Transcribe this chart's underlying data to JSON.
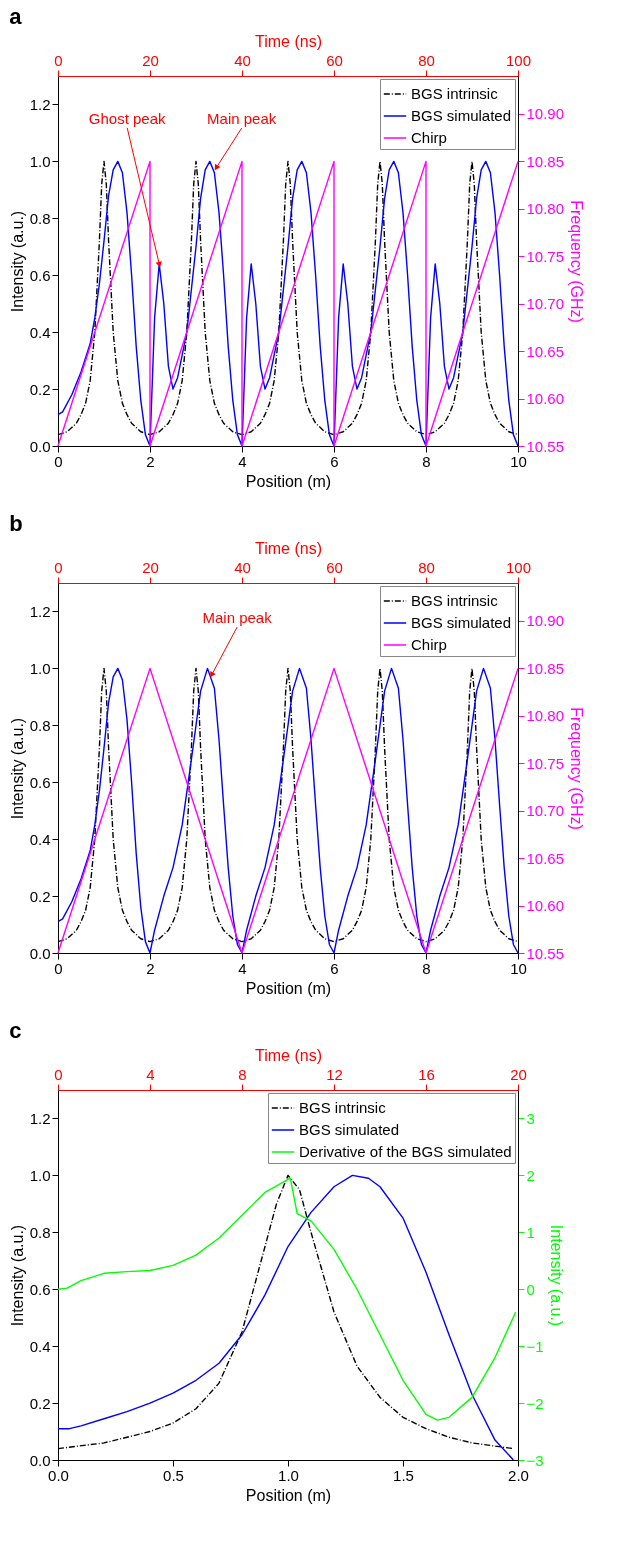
{
  "chart_data": [
    {
      "type": "line",
      "title": "a",
      "xlabel": "Position (m)",
      "ylabel": "Intensity (a.u.)",
      "y2label": "Frequency (GHz)",
      "x2label": "Time (ns)",
      "xlim": [
        0,
        10
      ],
      "xticks": [
        0,
        2,
        4,
        6,
        8,
        10
      ],
      "x2lim": [
        0,
        100
      ],
      "x2ticks": [
        0,
        20,
        40,
        60,
        80,
        100
      ],
      "ylim": [
        0,
        1.3
      ],
      "yticks": [
        {
          "value": 0,
          "label": "0.0"
        },
        {
          "value": 0.2,
          "label": "0.2"
        },
        {
          "value": 0.4,
          "label": "0.4"
        },
        {
          "value": 0.6,
          "label": "0.6"
        },
        {
          "value": 0.8,
          "label": "0.8"
        },
        {
          "value": 1,
          "label": "1.0"
        },
        {
          "value": 1.2,
          "label": "1.2"
        }
      ],
      "y2lim": [
        10.55,
        10.94
      ],
      "y2ticks": [
        {
          "value": 10.55,
          "label": "10.55"
        },
        {
          "value": 10.6,
          "label": "10.60"
        },
        {
          "value": 10.65,
          "label": "10.65"
        },
        {
          "value": 10.7,
          "label": "10.70"
        },
        {
          "value": 10.75,
          "label": "10.75"
        },
        {
          "value": 10.8,
          "label": "10.80"
        },
        {
          "value": 10.85,
          "label": "10.85"
        },
        {
          "value": 10.9,
          "label": "10.90"
        }
      ],
      "grid": false,
      "legend": "top right",
      "annotations": [
        {
          "text": "Ghost peak",
          "x": 2.2,
          "y": 0.64
        },
        {
          "text": "Main peak",
          "x": 3.45,
          "y": 0.98
        }
      ],
      "series": [
        {
          "name": "BGS intrinsic",
          "color": "#000000",
          "line_style": "dashdot",
          "x": [
            0,
            0.2,
            0.4,
            0.5,
            0.6,
            0.7,
            0.8,
            0.9,
            0.95,
            1,
            1.05,
            1.1,
            1.2,
            1.3,
            1.4,
            1.5,
            1.6,
            1.8,
            2,
            2.2,
            2.4,
            2.5,
            2.6,
            2.7,
            2.8,
            2.9,
            2.95,
            3,
            3.05,
            3.1,
            3.2,
            3.3,
            3.4,
            3.5,
            3.6,
            3.8,
            4,
            4.2,
            4.4,
            4.5,
            4.6,
            4.7,
            4.8,
            4.9,
            4.95,
            5,
            5.05,
            5.1,
            5.2,
            5.3,
            5.4,
            5.5,
            5.6,
            5.8,
            6,
            6.2,
            6.4,
            6.5,
            6.6,
            6.7,
            6.8,
            6.9,
            6.95,
            7,
            7.05,
            7.1,
            7.2,
            7.3,
            7.4,
            7.5,
            7.6,
            7.8,
            8,
            8.2,
            8.4,
            8.5,
            8.6,
            8.7,
            8.8,
            8.9,
            8.95,
            9,
            9.05,
            9.1,
            9.2,
            9.3,
            9.4,
            9.5,
            9.6,
            9.8,
            10
          ],
          "values": [
            0.04,
            0.05,
            0.08,
            0.11,
            0.15,
            0.23,
            0.4,
            0.72,
            0.92,
            1,
            0.92,
            0.72,
            0.4,
            0.23,
            0.15,
            0.11,
            0.08,
            0.05,
            0.04,
            0.05,
            0.08,
            0.11,
            0.15,
            0.23,
            0.4,
            0.72,
            0.92,
            1,
            0.92,
            0.72,
            0.4,
            0.23,
            0.15,
            0.11,
            0.08,
            0.05,
            0.04,
            0.05,
            0.08,
            0.11,
            0.15,
            0.23,
            0.4,
            0.72,
            0.92,
            1,
            0.92,
            0.72,
            0.4,
            0.23,
            0.15,
            0.11,
            0.08,
            0.05,
            0.04,
            0.05,
            0.08,
            0.11,
            0.15,
            0.23,
            0.4,
            0.72,
            0.92,
            1,
            0.92,
            0.72,
            0.4,
            0.23,
            0.15,
            0.11,
            0.08,
            0.05,
            0.04,
            0.05,
            0.08,
            0.11,
            0.15,
            0.23,
            0.4,
            0.72,
            0.92,
            1,
            0.92,
            0.72,
            0.4,
            0.23,
            0.15,
            0.11,
            0.08,
            0.05,
            0.04
          ]
        },
        {
          "name": "BGS simulated",
          "color": "#0000ff",
          "line_style": "solid",
          "x": [
            0,
            0.1,
            0.3,
            0.5,
            0.7,
            0.8,
            0.9,
            1,
            1.1,
            1.2,
            1.3,
            1.4,
            1.5,
            1.6,
            1.7,
            1.8,
            1.9,
            2,
            2.1,
            2.2,
            2.3,
            2.4,
            2.5,
            2.6,
            2.8,
            3,
            3.1,
            3.2,
            3.3,
            3.4,
            3.5,
            3.6,
            3.7,
            3.8,
            3.9,
            4,
            4.1,
            4.2,
            4.3,
            4.4,
            4.5,
            4.6,
            4.8,
            5,
            5.1,
            5.2,
            5.3,
            5.4,
            5.5,
            5.6,
            5.7,
            5.8,
            5.9,
            6,
            6.1,
            6.2,
            6.3,
            6.4,
            6.5,
            6.6,
            6.8,
            7,
            7.1,
            7.2,
            7.3,
            7.4,
            7.5,
            7.6,
            7.7,
            7.8,
            7.9,
            8,
            8.1,
            8.2,
            8.3,
            8.4,
            8.5,
            8.6,
            8.8,
            9,
            9.1,
            9.2,
            9.3,
            9.4,
            9.5,
            9.6,
            9.7,
            9.8,
            9.9,
            10
          ],
          "values": [
            0.11,
            0.12,
            0.18,
            0.26,
            0.36,
            0.45,
            0.57,
            0.72,
            0.88,
            0.97,
            1,
            0.96,
            0.82,
            0.6,
            0.35,
            0.16,
            0.04,
            0,
            0.45,
            0.64,
            0.5,
            0.28,
            0.2,
            0.24,
            0.4,
            0.7,
            0.87,
            0.97,
            1,
            0.96,
            0.82,
            0.6,
            0.35,
            0.16,
            0.04,
            0,
            0.45,
            0.64,
            0.5,
            0.28,
            0.2,
            0.24,
            0.4,
            0.7,
            0.87,
            0.97,
            1,
            0.96,
            0.82,
            0.6,
            0.35,
            0.16,
            0.04,
            0,
            0.45,
            0.64,
            0.5,
            0.28,
            0.2,
            0.24,
            0.4,
            0.7,
            0.87,
            0.97,
            1,
            0.96,
            0.82,
            0.6,
            0.35,
            0.16,
            0.04,
            0,
            0.45,
            0.64,
            0.5,
            0.28,
            0.2,
            0.24,
            0.4,
            0.7,
            0.87,
            0.97,
            1,
            0.96,
            0.82,
            0.6,
            0.35,
            0.16,
            0.04,
            0
          ]
        },
        {
          "name": "Chirp",
          "color": "#ff00ff",
          "line_style": "solid",
          "axis": "y2",
          "x": [
            0,
            2,
            2,
            4,
            4,
            6,
            6,
            8,
            8,
            10
          ],
          "values": [
            10.55,
            10.85,
            10.55,
            10.85,
            10.55,
            10.85,
            10.55,
            10.85,
            10.55,
            10.85
          ]
        }
      ]
    },
    {
      "type": "line",
      "title": "b",
      "xlabel": "Position (m)",
      "ylabel": "Intensity (a.u.)",
      "y2label": "Frequency (GHz)",
      "x2label": "Time (ns)",
      "xlim": [
        0,
        10
      ],
      "xticks": [
        0,
        2,
        4,
        6,
        8,
        10
      ],
      "x2lim": [
        0,
        100
      ],
      "x2ticks": [
        0,
        20,
        40,
        60,
        80,
        100
      ],
      "ylim": [
        0,
        1.3
      ],
      "yticks": [
        {
          "value": 0,
          "label": "0.0"
        },
        {
          "value": 0.2,
          "label": "0.2"
        },
        {
          "value": 0.4,
          "label": "0.4"
        },
        {
          "value": 0.6,
          "label": "0.6"
        },
        {
          "value": 0.8,
          "label": "0.8"
        },
        {
          "value": 1,
          "label": "1.0"
        },
        {
          "value": 1.2,
          "label": "1.2"
        }
      ],
      "y2lim": [
        10.55,
        10.94
      ],
      "y2ticks": [
        {
          "value": 10.55,
          "label": "10.55"
        },
        {
          "value": 10.6,
          "label": "10.60"
        },
        {
          "value": 10.65,
          "label": "10.65"
        },
        {
          "value": 10.7,
          "label": "10.70"
        },
        {
          "value": 10.75,
          "label": "10.75"
        },
        {
          "value": 10.8,
          "label": "10.80"
        },
        {
          "value": 10.85,
          "label": "10.85"
        },
        {
          "value": 10.9,
          "label": "10.90"
        }
      ],
      "grid": false,
      "legend": "top right",
      "annotations": [
        {
          "text": "Main peak",
          "x": 3.35,
          "y": 0.98
        }
      ],
      "series": [
        {
          "name": "BGS intrinsic",
          "color": "#000000",
          "line_style": "dashdot",
          "x": [
            0,
            0.2,
            0.4,
            0.5,
            0.6,
            0.7,
            0.8,
            0.9,
            0.95,
            1,
            1.05,
            1.1,
            1.2,
            1.3,
            1.4,
            1.5,
            1.6,
            1.8,
            2,
            2.2,
            2.4,
            2.5,
            2.6,
            2.7,
            2.8,
            2.9,
            2.95,
            3,
            3.05,
            3.1,
            3.2,
            3.3,
            3.4,
            3.5,
            3.6,
            3.8,
            4,
            4.2,
            4.4,
            4.5,
            4.6,
            4.7,
            4.8,
            4.9,
            4.95,
            5,
            5.05,
            5.1,
            5.2,
            5.3,
            5.4,
            5.5,
            5.6,
            5.8,
            6,
            6.2,
            6.4,
            6.5,
            6.6,
            6.7,
            6.8,
            6.9,
            6.95,
            7,
            7.05,
            7.1,
            7.2,
            7.3,
            7.4,
            7.5,
            7.6,
            7.8,
            8,
            8.2,
            8.4,
            8.5,
            8.6,
            8.7,
            8.8,
            8.9,
            8.95,
            9,
            9.05,
            9.1,
            9.2,
            9.3,
            9.4,
            9.5,
            9.6,
            9.8,
            10
          ],
          "values": [
            0.04,
            0.05,
            0.08,
            0.11,
            0.15,
            0.23,
            0.4,
            0.72,
            0.92,
            1,
            0.92,
            0.72,
            0.4,
            0.23,
            0.15,
            0.11,
            0.08,
            0.05,
            0.04,
            0.05,
            0.08,
            0.11,
            0.15,
            0.23,
            0.4,
            0.72,
            0.92,
            1,
            0.92,
            0.72,
            0.4,
            0.23,
            0.15,
            0.11,
            0.08,
            0.05,
            0.04,
            0.05,
            0.08,
            0.11,
            0.15,
            0.23,
            0.4,
            0.72,
            0.92,
            1,
            0.92,
            0.72,
            0.4,
            0.23,
            0.15,
            0.11,
            0.08,
            0.05,
            0.04,
            0.05,
            0.08,
            0.11,
            0.15,
            0.23,
            0.4,
            0.72,
            0.92,
            1,
            0.92,
            0.72,
            0.4,
            0.23,
            0.15,
            0.11,
            0.08,
            0.05,
            0.04,
            0.05,
            0.08,
            0.11,
            0.15,
            0.23,
            0.4,
            0.72,
            0.92,
            1,
            0.92,
            0.72,
            0.4,
            0.23,
            0.15,
            0.11,
            0.08,
            0.05,
            0.04
          ]
        },
        {
          "name": "BGS simulated",
          "color": "#0000ff",
          "line_style": "solid",
          "x": [
            0,
            0.1,
            0.3,
            0.5,
            0.7,
            0.8,
            0.9,
            1,
            1.1,
            1.2,
            1.3,
            1.4,
            1.5,
            1.6,
            1.7,
            1.8,
            1.9,
            2,
            2.1,
            2.3,
            2.5,
            2.7,
            2.9,
            3,
            3.1,
            3.25,
            3.4,
            3.5,
            3.6,
            3.7,
            3.8,
            3.9,
            4,
            4.1,
            4.3,
            4.5,
            4.7,
            4.9,
            5,
            5.1,
            5.25,
            5.4,
            5.5,
            5.6,
            5.7,
            5.8,
            5.9,
            6,
            6.1,
            6.3,
            6.5,
            6.7,
            6.9,
            7,
            7.1,
            7.25,
            7.4,
            7.5,
            7.6,
            7.7,
            7.8,
            7.9,
            8,
            8.1,
            8.3,
            8.5,
            8.7,
            8.9,
            9,
            9.1,
            9.25,
            9.4,
            9.5,
            9.6,
            9.7,
            9.8,
            9.9,
            10
          ],
          "values": [
            0.11,
            0.12,
            0.18,
            0.26,
            0.36,
            0.45,
            0.57,
            0.72,
            0.88,
            0.97,
            1,
            0.96,
            0.82,
            0.6,
            0.35,
            0.16,
            0.04,
            0,
            0.08,
            0.2,
            0.3,
            0.45,
            0.68,
            0.8,
            0.92,
            1,
            0.93,
            0.75,
            0.52,
            0.3,
            0.13,
            0.03,
            0,
            0.08,
            0.2,
            0.3,
            0.45,
            0.68,
            0.8,
            0.92,
            1,
            0.93,
            0.75,
            0.52,
            0.3,
            0.13,
            0.03,
            0,
            0.08,
            0.2,
            0.3,
            0.45,
            0.68,
            0.8,
            0.92,
            1,
            0.93,
            0.75,
            0.52,
            0.3,
            0.13,
            0.03,
            0,
            0.08,
            0.2,
            0.3,
            0.45,
            0.68,
            0.8,
            0.92,
            1,
            0.93,
            0.75,
            0.52,
            0.3,
            0.13,
            0.03,
            0
          ]
        },
        {
          "name": "Chirp",
          "color": "#ff00ff",
          "line_style": "solid",
          "axis": "y2",
          "x": [
            0,
            2,
            4,
            6,
            8,
            10
          ],
          "values": [
            10.55,
            10.85,
            10.55,
            10.85,
            10.55,
            10.85
          ]
        }
      ]
    },
    {
      "type": "line",
      "title": "c",
      "xlabel": "Position (m)",
      "ylabel": "Intensity (a.u.)",
      "y2label": "Intensity (a.u.)",
      "x2label": "Time (ns)",
      "xlim": [
        0,
        2
      ],
      "xticks": [
        {
          "value": 0,
          "label": "0.0"
        },
        {
          "value": 0.5,
          "label": "0.5"
        },
        {
          "value": 1,
          "label": "1.0"
        },
        {
          "value": 1.5,
          "label": "1.5"
        },
        {
          "value": 2,
          "label": "2.0"
        }
      ],
      "x2lim": [
        0,
        20
      ],
      "x2ticks": [
        0,
        4,
        8,
        12,
        16,
        20
      ],
      "ylim": [
        0,
        1.3
      ],
      "yticks": [
        {
          "value": 0,
          "label": "0.0"
        },
        {
          "value": 0.2,
          "label": "0.2"
        },
        {
          "value": 0.4,
          "label": "0.4"
        },
        {
          "value": 0.6,
          "label": "0.6"
        },
        {
          "value": 0.8,
          "label": "0.8"
        },
        {
          "value": 1,
          "label": "1.0"
        },
        {
          "value": 1.2,
          "label": "1.2"
        }
      ],
      "y2lim": [
        -3,
        3.5
      ],
      "y2ticks": [
        {
          "value": -3,
          "label": "−3"
        },
        {
          "value": -2,
          "label": "−2"
        },
        {
          "value": -1,
          "label": "−1"
        },
        0,
        1,
        2,
        3
      ],
      "grid": false,
      "legend": "top right",
      "series": [
        {
          "name": "BGS intrinsic",
          "color": "#000000",
          "line_style": "dashdot",
          "x": [
            0,
            0.2,
            0.4,
            0.5,
            0.6,
            0.7,
            0.8,
            0.9,
            0.95,
            1,
            1.05,
            1.1,
            1.2,
            1.3,
            1.4,
            1.5,
            1.6,
            1.7,
            1.8,
            1.98
          ],
          "values": [
            0.04,
            0.06,
            0.1,
            0.13,
            0.18,
            0.27,
            0.45,
            0.75,
            0.9,
            1,
            0.95,
            0.8,
            0.52,
            0.33,
            0.22,
            0.15,
            0.11,
            0.08,
            0.06,
            0.04
          ]
        },
        {
          "name": "BGS simulated",
          "color": "#0000ff",
          "line_style": "solid",
          "x": [
            0,
            0.05,
            0.1,
            0.2,
            0.3,
            0.4,
            0.5,
            0.6,
            0.7,
            0.8,
            0.9,
            1,
            1.1,
            1.2,
            1.28,
            1.35,
            1.4,
            1.5,
            1.6,
            1.7,
            1.8,
            1.9,
            1.98
          ],
          "values": [
            0.11,
            0.11,
            0.12,
            0.145,
            0.17,
            0.2,
            0.235,
            0.28,
            0.34,
            0.44,
            0.58,
            0.75,
            0.87,
            0.96,
            1,
            0.99,
            0.96,
            0.85,
            0.66,
            0.44,
            0.23,
            0.07,
            0
          ]
        },
        {
          "name": "Derivative of the BGS simulated",
          "color": "#00ff00",
          "line_style": "solid",
          "axis": "y2",
          "x": [
            0,
            0.04,
            0.1,
            0.2,
            0.3,
            0.4,
            0.5,
            0.6,
            0.7,
            0.8,
            0.9,
            1.01,
            1.04,
            1.1,
            1.2,
            1.3,
            1.4,
            1.5,
            1.6,
            1.65,
            1.7,
            1.8,
            1.9,
            1.99
          ],
          "values": [
            0,
            0.02,
            0.15,
            0.28,
            0.31,
            0.33,
            0.42,
            0.6,
            0.9,
            1.3,
            1.7,
            1.95,
            1.33,
            1.2,
            0.7,
            0,
            -0.8,
            -1.6,
            -2.2,
            -2.3,
            -2.25,
            -1.9,
            -1.2,
            -0.4
          ]
        }
      ]
    }
  ]
}
